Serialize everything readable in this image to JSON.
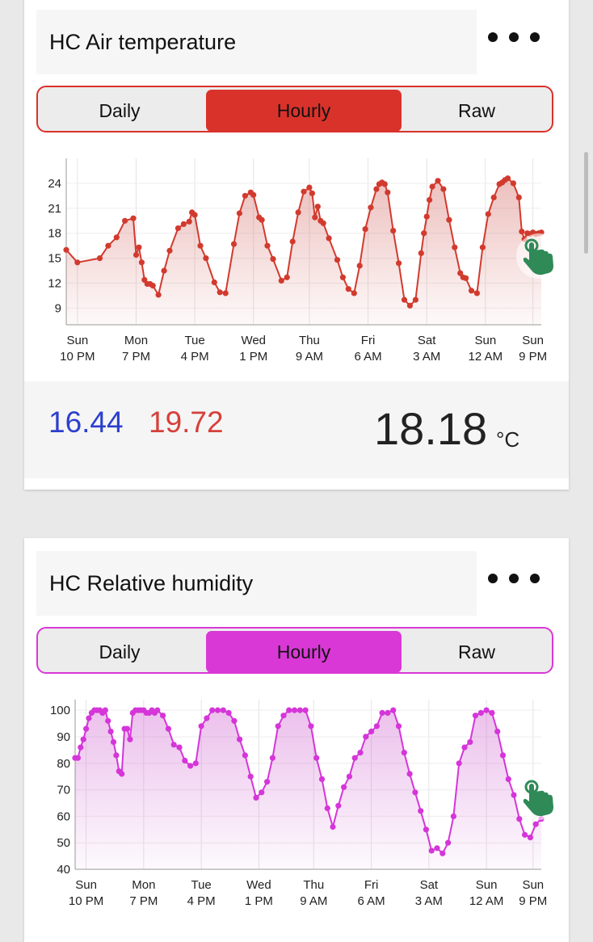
{
  "cards": [
    {
      "title": "HC Air temperature",
      "accent": "#d9322b",
      "dot_color": "#d23a2e",
      "fill_color": "#c94a44",
      "tabs": [
        "Daily",
        "Hourly",
        "Raw"
      ],
      "active_tab": "Hourly",
      "footer": {
        "min": "16.44",
        "max": "19.72",
        "current": "18.18",
        "unit": "°C"
      },
      "icons": {
        "more": "more-dots-icon",
        "touch": "tap-gesture-icon"
      }
    },
    {
      "title": "HC Relative humidity",
      "accent": "#d938d6",
      "dot_color": "#d535d9",
      "fill_color": "#c84cc8",
      "tabs": [
        "Daily",
        "Hourly",
        "Raw"
      ],
      "active_tab": "Hourly",
      "icons": {
        "more": "more-dots-icon",
        "touch": "tap-gesture-icon"
      }
    }
  ],
  "chart_data": [
    {
      "type": "line",
      "title": "",
      "xlabel": "",
      "ylabel": "",
      "ylim": [
        7,
        27
      ],
      "yticks": [
        9,
        12,
        15,
        18,
        21,
        24
      ],
      "xticks": [
        {
          "t": 4,
          "l1": "Sun",
          "l2": "10 PM"
        },
        {
          "t": 25,
          "l1": "Mon",
          "l2": "7 PM"
        },
        {
          "t": 46,
          "l1": "Tue",
          "l2": "4 PM"
        },
        {
          "t": 67,
          "l1": "Wed",
          "l2": "1 PM"
        },
        {
          "t": 87,
          "l1": "Thu",
          "l2": "9 AM"
        },
        {
          "t": 108,
          "l1": "Fri",
          "l2": "6 AM"
        },
        {
          "t": 129,
          "l1": "Sat",
          "l2": "3 AM"
        },
        {
          "t": 150,
          "l1": "Sun",
          "l2": "12 AM"
        },
        {
          "t": 167,
          "l1": "Sun",
          "l2": "9 PM"
        }
      ],
      "grid": true,
      "x": [
        0,
        4,
        12,
        15,
        18,
        21,
        24,
        25,
        26,
        27,
        28,
        29,
        30,
        31,
        33,
        35,
        37,
        40,
        42,
        44,
        45,
        46,
        48,
        50,
        53,
        55,
        57,
        60,
        62,
        64,
        66,
        67,
        69,
        70,
        72,
        74,
        77,
        79,
        81,
        83,
        85,
        87,
        88,
        89,
        90,
        91,
        92,
        94,
        97,
        99,
        101,
        103,
        105,
        107,
        109,
        111,
        112,
        113,
        114,
        115,
        117,
        119,
        121,
        123,
        125,
        127,
        128,
        129,
        130,
        131,
        133,
        135,
        137,
        139,
        141,
        142,
        143,
        145,
        147,
        149,
        151,
        153,
        155,
        156,
        157,
        158,
        160,
        162,
        163,
        164,
        165,
        166,
        167,
        168,
        169,
        170
      ],
      "values": [
        16.0,
        14.5,
        15.0,
        16.5,
        17.5,
        19.5,
        19.8,
        15.4,
        16.3,
        14.5,
        12.4,
        11.9,
        11.9,
        11.7,
        10.6,
        13.5,
        15.9,
        18.6,
        19.1,
        19.4,
        20.5,
        20.2,
        16.5,
        15.0,
        12.1,
        10.9,
        10.8,
        16.7,
        20.4,
        22.5,
        22.9,
        22.6,
        19.9,
        19.6,
        16.5,
        14.9,
        12.3,
        12.7,
        17.0,
        20.5,
        23.0,
        23.5,
        22.8,
        19.9,
        21.2,
        19.5,
        19.2,
        17.4,
        14.8,
        12.7,
        11.3,
        10.8,
        14.1,
        18.5,
        21.1,
        23.3,
        23.9,
        24.1,
        23.9,
        22.9,
        18.3,
        14.4,
        10.0,
        9.3,
        10.0,
        15.6,
        18.0,
        20.0,
        22.0,
        23.6,
        24.3,
        23.3,
        19.6,
        16.3,
        13.2,
        12.7,
        12.6,
        11.1,
        10.8,
        16.3,
        20.3,
        22.3,
        23.9,
        24.1,
        24.4,
        24.6,
        24.0,
        22.3,
        18.2,
        17.3,
        18.0,
        17.9,
        18.1,
        17.9,
        18.0,
        18.1
      ],
      "area": true
    },
    {
      "type": "line",
      "title": "",
      "xlabel": "",
      "ylabel": "",
      "ylim": [
        40,
        104
      ],
      "yticks": [
        40,
        50,
        60,
        70,
        80,
        90,
        100
      ],
      "xticks": [
        {
          "t": 4,
          "l1": "Sun",
          "l2": "10 PM"
        },
        {
          "t": 25,
          "l1": "Mon",
          "l2": "7 PM"
        },
        {
          "t": 46,
          "l1": "Tue",
          "l2": "4 PM"
        },
        {
          "t": 67,
          "l1": "Wed",
          "l2": "1 PM"
        },
        {
          "t": 87,
          "l1": "Thu",
          "l2": "9 AM"
        },
        {
          "t": 108,
          "l1": "Fri",
          "l2": "6 AM"
        },
        {
          "t": 129,
          "l1": "Sat",
          "l2": "3 AM"
        },
        {
          "t": 150,
          "l1": "Sun",
          "l2": "12 AM"
        },
        {
          "t": 167,
          "l1": "Sun",
          "l2": "9 PM"
        }
      ],
      "grid": true,
      "x": [
        0,
        1,
        2,
        3,
        4,
        5,
        6,
        7,
        8,
        9,
        10,
        11,
        12,
        13,
        14,
        15,
        16,
        17,
        18,
        19,
        20,
        21,
        22,
        23,
        24,
        25,
        26,
        27,
        28,
        29,
        30,
        32,
        34,
        36,
        38,
        40,
        42,
        44,
        46,
        48,
        50,
        52,
        54,
        56,
        58,
        60,
        62,
        64,
        66,
        68,
        70,
        72,
        74,
        76,
        78,
        80,
        82,
        84,
        86,
        88,
        90,
        92,
        94,
        96,
        98,
        100,
        102,
        104,
        106,
        108,
        110,
        112,
        114,
        116,
        118,
        120,
        122,
        124,
        126,
        128,
        130,
        132,
        134,
        136,
        138,
        140,
        142,
        144,
        146,
        148,
        150,
        152,
        154,
        156,
        158,
        160,
        162,
        164,
        166,
        168,
        170
      ],
      "values": [
        82,
        82,
        86,
        89,
        93,
        97,
        99,
        100,
        100,
        100,
        99,
        100,
        96,
        92,
        88,
        83,
        77,
        76,
        93,
        93,
        89,
        99,
        100,
        100,
        100,
        100,
        99,
        99,
        100,
        99,
        100,
        98,
        93,
        87,
        86,
        81,
        79,
        80,
        94,
        97,
        100,
        100,
        100,
        99,
        96,
        89,
        83,
        75,
        67,
        69,
        73,
        82,
        94,
        98,
        100,
        100,
        100,
        100,
        94,
        82,
        74,
        63,
        56,
        64,
        71,
        75,
        82,
        84,
        90,
        92,
        94,
        99,
        99,
        100,
        94,
        84,
        76,
        69,
        62,
        55,
        47,
        48,
        46,
        50,
        60,
        80,
        86,
        88,
        98,
        99,
        100,
        99,
        92,
        83,
        74,
        68,
        59,
        53,
        52,
        57,
        59
      ],
      "area": true
    }
  ]
}
